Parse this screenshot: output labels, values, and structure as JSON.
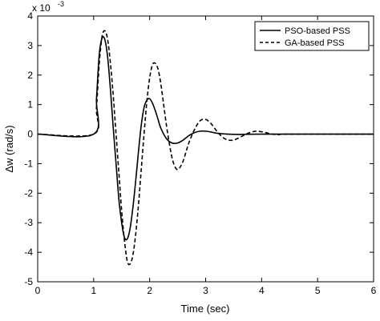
{
  "chart_data": {
    "type": "line",
    "title": "",
    "xlabel": "Time (sec)",
    "ylabel": "Δw (rad/s)",
    "y_exponent_label": "x 10",
    "y_exponent_power": "-3",
    "xlim": [
      0,
      6
    ],
    "ylim": [
      -5,
      4
    ],
    "x_ticks": [
      "0",
      "1",
      "2",
      "3",
      "4",
      "5",
      "6"
    ],
    "y_ticks": [
      "4",
      "3",
      "2",
      "1",
      "0",
      "-1",
      "-2",
      "-3",
      "-4",
      "-5"
    ],
    "grid": false,
    "legend_position": "top-right",
    "series": [
      {
        "name": "PSO-based PSS",
        "line_style": "solid",
        "color": "#000000",
        "x": [
          0,
          1.0,
          1.05,
          1.1,
          1.15,
          1.2,
          1.25,
          1.3,
          1.35,
          1.4,
          1.45,
          1.5,
          1.55,
          1.6,
          1.65,
          1.7,
          1.75,
          1.8,
          1.85,
          1.9,
          1.95,
          2.0,
          2.05,
          2.1,
          2.15,
          2.2,
          2.3,
          2.4,
          2.5,
          2.6,
          2.7,
          2.8,
          2.9,
          3.0,
          3.1,
          3.2,
          3.4,
          3.6,
          4.0,
          6.0
        ],
        "y": [
          0,
          0,
          1.2,
          2.7,
          3.25,
          3.2,
          2.6,
          1.5,
          0.2,
          -1.0,
          -2.2,
          -3.0,
          -3.5,
          -3.55,
          -3.2,
          -2.5,
          -1.6,
          -0.6,
          0.3,
          0.9,
          1.15,
          1.2,
          1.05,
          0.8,
          0.5,
          0.2,
          -0.15,
          -0.3,
          -0.3,
          -0.2,
          -0.05,
          0.05,
          0.1,
          0.1,
          0.07,
          0.03,
          0.0,
          -0.01,
          0,
          0
        ]
      },
      {
        "name": "GA-based PSS",
        "line_style": "dashed",
        "color": "#000000",
        "x": [
          0,
          1.0,
          1.05,
          1.1,
          1.15,
          1.2,
          1.25,
          1.3,
          1.35,
          1.4,
          1.45,
          1.5,
          1.55,
          1.6,
          1.65,
          1.7,
          1.75,
          1.8,
          1.85,
          1.9,
          1.95,
          2.0,
          2.05,
          2.1,
          2.15,
          2.2,
          2.25,
          2.3,
          2.35,
          2.4,
          2.45,
          2.5,
          2.55,
          2.6,
          2.65,
          2.7,
          2.8,
          2.9,
          3.0,
          3.1,
          3.2,
          3.3,
          3.4,
          3.5,
          3.6,
          3.7,
          3.8,
          3.9,
          4.0,
          4.1,
          4.2,
          4.3,
          4.5,
          6.0
        ],
        "y": [
          0,
          0,
          0.9,
          2.4,
          3.3,
          3.5,
          3.2,
          2.4,
          1.3,
          0.0,
          -1.3,
          -2.6,
          -3.6,
          -4.3,
          -4.4,
          -4.1,
          -3.4,
          -2.4,
          -1.2,
          0.0,
          1.1,
          1.9,
          2.35,
          2.4,
          2.2,
          1.7,
          1.0,
          0.3,
          -0.3,
          -0.8,
          -1.1,
          -1.2,
          -1.1,
          -0.9,
          -0.6,
          -0.3,
          0.15,
          0.45,
          0.5,
          0.35,
          0.1,
          -0.1,
          -0.2,
          -0.2,
          -0.12,
          -0.02,
          0.06,
          0.1,
          0.08,
          0.04,
          0.0,
          -0.02,
          0,
          0
        ]
      }
    ]
  }
}
